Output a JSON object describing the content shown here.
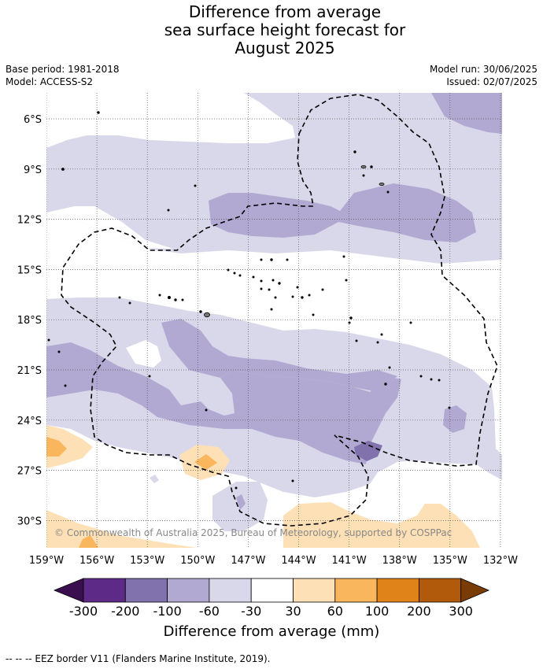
{
  "title": {
    "line1": "Difference from average",
    "line2": "sea surface height forecast for",
    "line3": "August 2025"
  },
  "meta": {
    "base_period": "Base period: 1981-2018",
    "model": "Model: ACCESS-S2",
    "model_run": "Model run: 30/06/2025",
    "issued": "Issued: 02/07/2025"
  },
  "map": {
    "longitude_labels": [
      "159°W",
      "156°W",
      "153°W",
      "150°W",
      "147°W",
      "144°W",
      "141°W",
      "138°W",
      "135°W",
      "132°W"
    ],
    "latitude_labels": [
      "6°S",
      "9°S",
      "12°S",
      "15°S",
      "18°S",
      "21°S",
      "24°S",
      "27°S",
      "30°S"
    ],
    "copyright": "© Commonwealth of Australia 2025, Bureau of Meteorology, supported by COSPPac"
  },
  "colorbar": {
    "labels": [
      "-300",
      "-200",
      "-100",
      "-60",
      "-30",
      "30",
      "60",
      "100",
      "200",
      "300"
    ],
    "colors": [
      "#3b0f4f",
      "#5e2a87",
      "#8172ad",
      "#b1a9d2",
      "#d8d8ea",
      "#ffffff",
      "#fde0b5",
      "#f9b65d",
      "#e08419",
      "#b15a0b",
      "#7a3c07"
    ],
    "title": "Difference from average (mm)"
  },
  "footnote": "--  --  -- EEZ border V11 (Flanders Marine Institute, 2019)."
}
